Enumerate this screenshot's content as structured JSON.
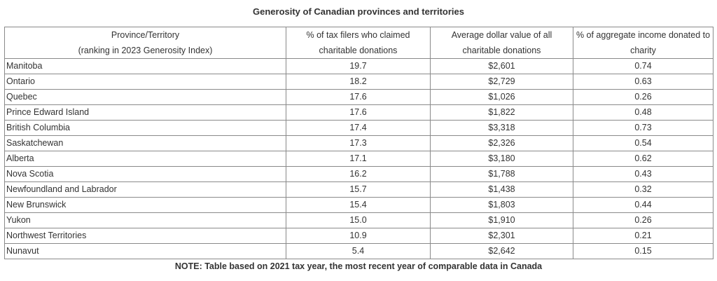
{
  "title": "Generosity of Canadian provinces and territories",
  "headers": [
    [
      "Province/Territory",
      "(ranking in 2023 Generosity Index)"
    ],
    [
      "% of tax filers who claimed",
      "charitable donations"
    ],
    [
      "Average dollar value of all",
      "charitable donations"
    ],
    [
      "% of aggregate income donated to",
      "charity"
    ]
  ],
  "rows": [
    [
      "Manitoba",
      "19.7",
      "$2,601",
      "0.74"
    ],
    [
      "Ontario",
      "18.2",
      "$2,729",
      "0.63"
    ],
    [
      "Quebec",
      "17.6",
      "$1,026",
      "0.26"
    ],
    [
      "Prince Edward Island",
      "17.6",
      "$1,822",
      "0.48"
    ],
    [
      "British Columbia",
      "17.4",
      "$3,318",
      "0.73"
    ],
    [
      "Saskatchewan",
      "17.3",
      "$2,326",
      "0.54"
    ],
    [
      "Alberta",
      "17.1",
      "$3,180",
      "0.62"
    ],
    [
      "Nova Scotia",
      "16.2",
      "$1,788",
      "0.43"
    ],
    [
      "Newfoundland and Labrador",
      "15.7",
      "$1,438",
      "0.32"
    ],
    [
      "New Brunswick",
      "15.4",
      "$1,803",
      "0.44"
    ],
    [
      "Yukon",
      "15.0",
      "$1,910",
      "0.26"
    ],
    [
      "Northwest Territories",
      "10.9",
      "$2,301",
      "0.21"
    ],
    [
      "Nunavut",
      "5.4",
      "$2,642",
      "0.15"
    ]
  ],
  "note": "NOTE: Table based on 2021 tax year, the most recent year of comparable data in Canada"
}
